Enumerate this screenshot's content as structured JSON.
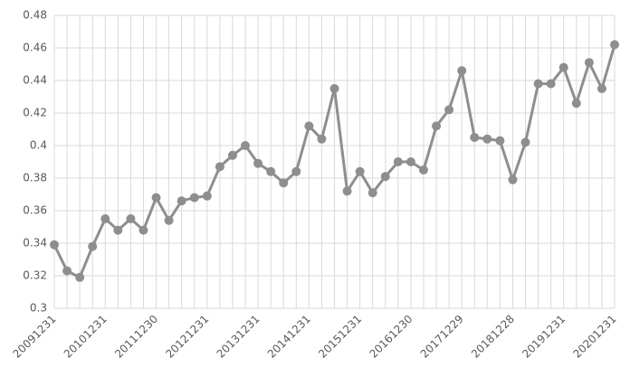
{
  "chart_data": {
    "type": "line",
    "categories": [
      "20091231",
      null,
      null,
      null,
      "20101231",
      null,
      null,
      null,
      "20111230",
      null,
      null,
      null,
      "20121231",
      null,
      null,
      null,
      "20131231",
      null,
      null,
      null,
      "20141231",
      null,
      null,
      null,
      "20151231",
      null,
      null,
      null,
      "20161230",
      null,
      null,
      null,
      "20171229",
      null,
      null,
      null,
      "20181228",
      null,
      null,
      null,
      "20191231",
      null,
      null,
      null,
      "20201231"
    ],
    "values": [
      0.339,
      0.323,
      0.319,
      0.338,
      0.355,
      0.348,
      0.355,
      0.348,
      0.368,
      0.354,
      0.366,
      0.368,
      0.369,
      0.387,
      0.394,
      0.4,
      0.389,
      0.384,
      0.377,
      0.384,
      0.412,
      0.404,
      0.435,
      0.372,
      0.384,
      0.371,
      0.381,
      0.39,
      0.39,
      0.385,
      0.412,
      0.422,
      0.446,
      0.405,
      0.404,
      0.403,
      0.379,
      0.402,
      0.438,
      0.438,
      0.448,
      0.426,
      0.451,
      0.435,
      0.462
    ],
    "color": "#8e8e8e",
    "ylim": [
      0.3,
      0.48
    ],
    "yticks": [
      0.3,
      0.32,
      0.34,
      0.36,
      0.38,
      0.4,
      0.42,
      0.44,
      0.46,
      0.48
    ],
    "grid": true
  }
}
